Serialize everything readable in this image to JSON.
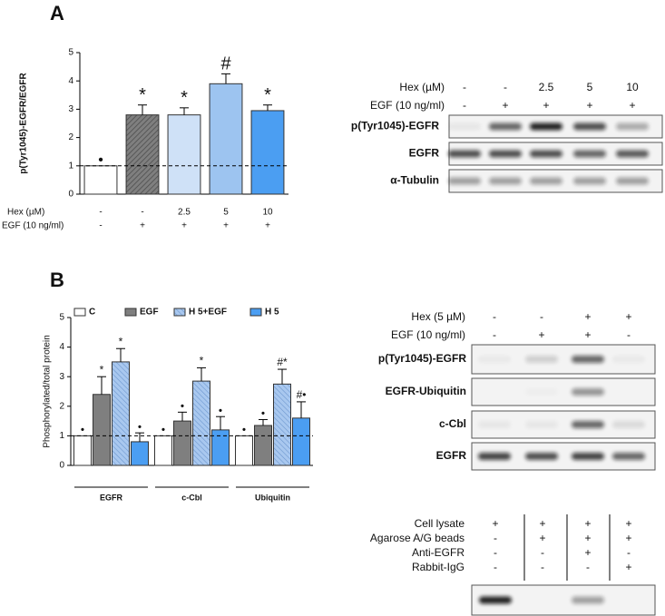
{
  "panel_labels": [
    "A",
    "B"
  ],
  "chart_data": [
    {
      "type": "bar",
      "y_label": "p(Tyr1045)-EGFR/EGFR",
      "categories": [
        null,
        null,
        null,
        null,
        null
      ],
      "values": [
        1,
        2.8,
        2.8,
        3.9,
        2.95
      ],
      "errors": [
        null,
        0.35,
        0.25,
        0.35,
        0.2
      ],
      "annotations": [
        "•",
        "*",
        "*",
        "#",
        "*"
      ],
      "colors": [
        "#ffffff",
        "#7f7f7f",
        "#cfe1f7",
        "#9dc4f0",
        "#4b9ef2"
      ],
      "hatched": [
        false,
        true,
        false,
        false,
        false
      ],
      "reference_line": 1,
      "ylim": [
        0,
        5
      ],
      "yticks": [
        0,
        1,
        2,
        3,
        4,
        5
      ],
      "treatments": [
        {
          "name": "Hex (µM)",
          "values": [
            "-",
            "-",
            "2.5",
            "5",
            "10"
          ]
        },
        {
          "name": "EGF (10 ng/ml)",
          "values": [
            "-",
            "+",
            "+",
            "+",
            "+"
          ]
        }
      ]
    },
    {
      "type": "grouped_bar",
      "y_label": "Phosphorylated/total protein",
      "categories": [
        "EGFR",
        "c-Cbl",
        "Ubiquitin"
      ],
      "series": [
        {
          "name": "C",
          "color": "#ffffff",
          "hatched": false,
          "values": [
            1,
            1,
            1
          ],
          "errors": [
            null,
            null,
            null
          ],
          "annotations": [
            "•",
            "•",
            "•"
          ]
        },
        {
          "name": "EGF",
          "color": "#7f7f7f",
          "hatched": false,
          "values": [
            2.4,
            1.5,
            1.35
          ],
          "errors": [
            0.6,
            0.3,
            0.2
          ],
          "annotations": [
            "*",
            "•",
            "•"
          ]
        },
        {
          "name": "H 5+EGF",
          "color": "#a9c8ef",
          "hatched": true,
          "values": [
            3.5,
            2.85,
            2.75
          ],
          "errors": [
            0.45,
            0.45,
            0.5
          ],
          "annotations": [
            "*",
            "*",
            "#*"
          ]
        },
        {
          "name": "H 5",
          "color": "#4b9ef2",
          "hatched": false,
          "values": [
            0.8,
            1.2,
            1.6
          ],
          "errors": [
            0.3,
            0.45,
            0.55
          ],
          "annotations": [
            "•",
            "•",
            "#•"
          ]
        }
      ],
      "reference_line": 1,
      "ylim": [
        0,
        5
      ],
      "yticks": [
        0,
        1,
        2,
        3,
        4,
        5
      ]
    }
  ],
  "blots": [
    {
      "header": [
        {
          "label": "Hex (µM)",
          "values": [
            "-",
            "-",
            "2.5",
            "5",
            "10"
          ]
        },
        {
          "label": "EGF (10 ng/ml)",
          "values": [
            "-",
            "+",
            "+",
            "+",
            "+"
          ]
        }
      ],
      "rows": [
        "p(Tyr1045)-EGFR",
        "EGFR",
        "α-Tubulin"
      ]
    },
    {
      "header": [
        {
          "label": "Hex (5 µM)",
          "values": [
            "-",
            "-",
            "+",
            "+"
          ]
        },
        {
          "label": "EGF (10 ng/ml)",
          "values": [
            "-",
            "+",
            "+",
            "-"
          ]
        }
      ],
      "rows": [
        "p(Tyr1045)-EGFR",
        "EGFR-Ubiquitin",
        "c-Cbl",
        "EGFR"
      ]
    },
    {
      "header": [
        {
          "label": "Cell lysate",
          "values": [
            "+",
            "+",
            "+",
            "+"
          ]
        },
        {
          "label": "Agarose A/G beads",
          "values": [
            "-",
            "+",
            "+",
            "+"
          ]
        },
        {
          "label": "Anti-EGFR",
          "values": [
            "-",
            "-",
            "+",
            "-"
          ]
        },
        {
          "label": "Rabbit-IgG",
          "values": [
            "-",
            "-",
            "-",
            "+"
          ]
        }
      ],
      "rows": []
    }
  ]
}
